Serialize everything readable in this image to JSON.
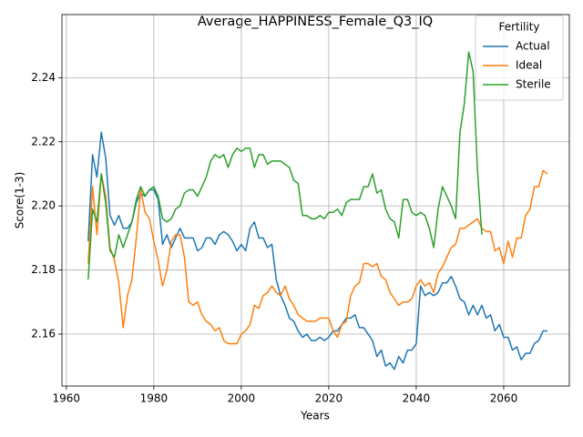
{
  "chart_data": {
    "type": "line",
    "title": "Average_HAPPINESS_Female_Q3_IQ",
    "x_label": "Years",
    "y_label": "Score(1-3)",
    "legend_title": "Fertility",
    "legend": "upper right",
    "grid": true,
    "xlim": [
      1959,
      2075
    ],
    "ylim": [
      2.1438,
      2.2597
    ],
    "xticks": [
      1960,
      1980,
      2000,
      2020,
      2040,
      2060
    ],
    "yticks": [
      2.16,
      2.18,
      {
        "value": 2.2,
        "label": "2.20"
      },
      2.22,
      2.24
    ],
    "x": [
      1965,
      1966,
      1967,
      1968,
      1969,
      1970,
      1971,
      1972,
      1973,
      1974,
      1975,
      1976,
      1977,
      1978,
      1979,
      1980,
      1981,
      1982,
      1983,
      1984,
      1985,
      1986,
      1987,
      1988,
      1989,
      1990,
      1991,
      1992,
      1993,
      1994,
      1995,
      1996,
      1997,
      1998,
      1999,
      2000,
      2001,
      2002,
      2003,
      2004,
      2005,
      2006,
      2007,
      2008,
      2009,
      2010,
      2011,
      2012,
      2013,
      2014,
      2015,
      2016,
      2017,
      2018,
      2019,
      2020,
      2021,
      2022,
      2023,
      2024,
      2025,
      2026,
      2027,
      2028,
      2029,
      2030,
      2031,
      2032,
      2033,
      2034,
      2035,
      2036,
      2037,
      2038,
      2039,
      2040,
      2041,
      2042,
      2043,
      2044,
      2045,
      2046,
      2047,
      2048,
      2049,
      2050,
      2051,
      2052,
      2053,
      2054,
      2055,
      2056,
      2057,
      2058,
      2059,
      2060,
      2061,
      2062,
      2063,
      2064,
      2065,
      2066,
      2067,
      2068,
      2069,
      2070
    ],
    "series": [
      {
        "name": "Actual",
        "color": "#1f77b4",
        "values": [
          2.189,
          2.216,
          2.209,
          2.223,
          2.215,
          2.197,
          2.194,
          2.197,
          2.193,
          2.193,
          2.195,
          2.201,
          2.204,
          2.203,
          2.205,
          2.205,
          2.202,
          2.188,
          2.191,
          2.187,
          2.19,
          2.193,
          2.19,
          2.19,
          2.19,
          2.186,
          2.187,
          2.19,
          2.19,
          2.188,
          2.191,
          2.192,
          2.191,
          2.189,
          2.186,
          2.188,
          2.186,
          2.193,
          2.195,
          2.19,
          2.19,
          2.187,
          2.188,
          2.177,
          2.172,
          2.169,
          2.165,
          2.164,
          2.161,
          2.159,
          2.16,
          2.158,
          2.158,
          2.159,
          2.158,
          2.159,
          2.161,
          2.161,
          2.163,
          2.165,
          2.165,
          2.166,
          2.162,
          2.162,
          2.16,
          2.158,
          2.153,
          2.155,
          2.15,
          2.151,
          2.149,
          2.153,
          2.151,
          2.155,
          2.155,
          2.157,
          2.175,
          2.172,
          2.173,
          2.172,
          2.173,
          2.176,
          2.176,
          2.178,
          2.175,
          2.171,
          2.17,
          2.166,
          2.169,
          2.166,
          2.169,
          2.165,
          2.166,
          2.161,
          2.163,
          2.159,
          2.159,
          2.155,
          2.156,
          2.152,
          2.154,
          2.154,
          2.157,
          2.158,
          2.161,
          2.161
        ]
      },
      {
        "name": "Ideal",
        "color": "#ff7f0e",
        "values": [
          2.182,
          2.206,
          2.191,
          2.21,
          2.203,
          2.187,
          2.183,
          2.176,
          2.162,
          2.172,
          2.177,
          2.19,
          2.205,
          2.198,
          2.196,
          2.189,
          2.183,
          2.175,
          2.18,
          2.189,
          2.191,
          2.191,
          2.184,
          2.17,
          2.169,
          2.17,
          2.166,
          2.164,
          2.163,
          2.161,
          2.162,
          2.158,
          2.157,
          2.157,
          2.157,
          2.16,
          2.161,
          2.163,
          2.169,
          2.168,
          2.172,
          2.173,
          2.175,
          2.173,
          2.172,
          2.175,
          2.171,
          2.169,
          2.166,
          2.165,
          2.164,
          2.164,
          2.164,
          2.165,
          2.165,
          2.165,
          2.161,
          2.159,
          2.163,
          2.164,
          2.172,
          2.175,
          2.176,
          2.182,
          2.182,
          2.181,
          2.182,
          2.178,
          2.177,
          2.173,
          2.171,
          2.169,
          2.17,
          2.17,
          2.171,
          2.175,
          2.177,
          2.175,
          2.176,
          2.173,
          2.179,
          2.181,
          2.184,
          2.187,
          2.188,
          2.193,
          2.193,
          2.194,
          2.195,
          2.196,
          2.193,
          2.192,
          2.192,
          2.186,
          2.187,
          2.182,
          2.189,
          2.184,
          2.19,
          2.19,
          2.197,
          2.199,
          2.206,
          2.206,
          2.211,
          2.21
        ]
      },
      {
        "name": "Sterile",
        "color": "#2ca02c",
        "values": [
          2.177,
          2.199,
          2.195,
          2.21,
          2.201,
          2.186,
          2.184,
          2.191,
          2.187,
          2.191,
          2.195,
          2.202,
          2.206,
          2.203,
          2.205,
          2.206,
          2.203,
          2.196,
          2.195,
          2.196,
          2.199,
          2.2,
          2.204,
          2.205,
          2.205,
          2.203,
          2.206,
          2.209,
          2.214,
          2.216,
          2.215,
          2.216,
          2.212,
          2.216,
          2.218,
          2.217,
          2.218,
          2.218,
          2.212,
          2.216,
          2.216,
          2.213,
          2.214,
          2.214,
          2.214,
          2.213,
          2.212,
          2.208,
          2.207,
          2.197,
          2.197,
          2.196,
          2.196,
          2.197,
          2.196,
          2.198,
          2.198,
          2.199,
          2.197,
          2.201,
          2.202,
          2.202,
          2.202,
          2.206,
          2.206,
          2.21,
          2.204,
          2.205,
          2.199,
          2.196,
          2.195,
          2.19,
          2.202,
          2.202,
          2.198,
          2.197,
          2.198,
          2.197,
          2.193,
          2.187,
          2.199,
          2.206,
          2.203,
          2.2,
          2.196,
          2.223,
          2.232,
          2.248,
          2.242,
          2.211,
          2.191,
          null,
          null,
          null,
          null,
          null,
          null,
          null,
          null,
          null,
          null,
          null,
          null,
          null,
          null,
          null
        ]
      }
    ]
  }
}
